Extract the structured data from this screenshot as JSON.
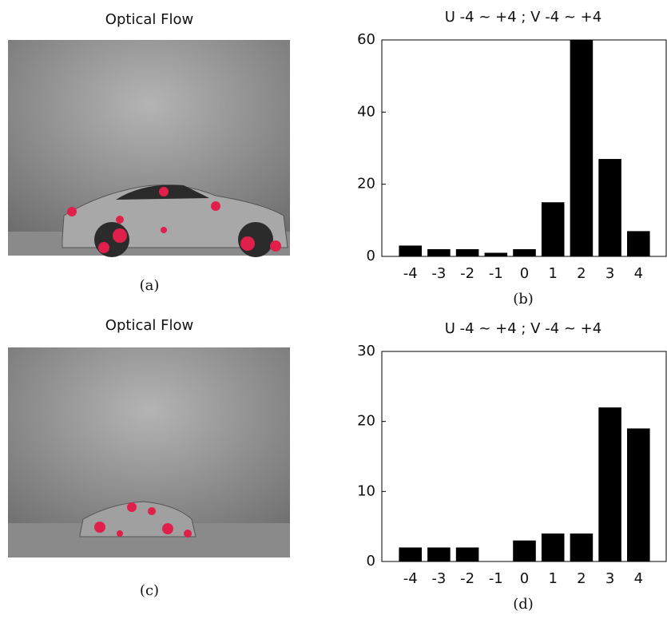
{
  "images": [
    {
      "title": "Optical Flow",
      "caption": "(a)"
    },
    {
      "title": "Optical Flow",
      "caption": "(c)"
    }
  ],
  "chart_data": [
    {
      "type": "bar",
      "title": "U -4 ~ +4 ; V -4 ~ +4",
      "caption": "(b)",
      "categories": [
        "-4",
        "-3",
        "-2",
        "-1",
        "0",
        "1",
        "2",
        "3",
        "4"
      ],
      "values": [
        3,
        2,
        2,
        1,
        2,
        15,
        60,
        27,
        7
      ],
      "color": "#000000",
      "ylim": [
        0,
        60
      ],
      "yticks": [
        0,
        20,
        40,
        60
      ]
    },
    {
      "type": "bar",
      "title": "U -4 ~ +4 ; V -4 ~ +4",
      "caption": "(d)",
      "categories": [
        "-4",
        "-3",
        "-2",
        "-1",
        "0",
        "1",
        "2",
        "3",
        "4"
      ],
      "values": [
        2,
        2,
        2,
        0,
        3,
        4,
        4,
        22,
        19
      ],
      "color": "#000000",
      "ylim": [
        0,
        30
      ],
      "yticks": [
        0,
        10,
        20,
        30
      ]
    }
  ]
}
